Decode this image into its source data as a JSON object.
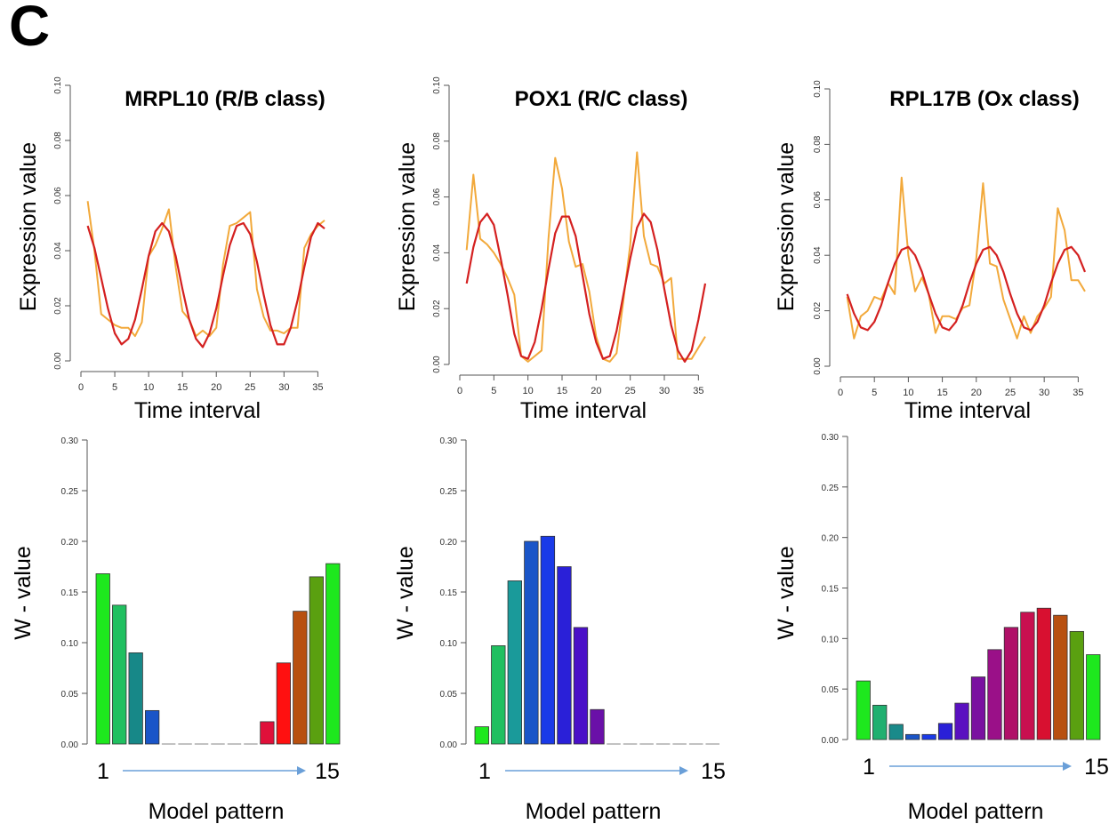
{
  "panel_label": "C",
  "colors": {
    "observed": "#f2a93b",
    "fitted": "#d42020",
    "bar_outline": "#333333",
    "arrow": "#6a9fd8"
  },
  "chart_data": [
    {
      "type": "line",
      "title": "MRPL10 (R/B class)",
      "xlabel": "Time interval",
      "ylabel": "Expression value",
      "xlim": [
        0,
        36
      ],
      "ylim": [
        0,
        0.1
      ],
      "xticks": [
        "0",
        "5",
        "10",
        "15",
        "20",
        "25",
        "30",
        "35"
      ],
      "yticks": [
        "0.00",
        "0.02",
        "0.04",
        "0.06",
        "0.08",
        "0.10"
      ],
      "series": [
        {
          "role": "observed",
          "x": [
            1,
            2,
            3,
            4,
            5,
            6,
            7,
            8,
            9,
            10,
            11,
            12,
            13,
            14,
            15,
            16,
            17,
            18,
            19,
            20,
            21,
            22,
            23,
            24,
            25,
            26,
            27,
            28,
            29,
            30,
            31,
            32,
            33,
            34,
            35,
            36
          ],
          "values": [
            0.058,
            0.04,
            0.017,
            0.015,
            0.013,
            0.012,
            0.012,
            0.009,
            0.014,
            0.038,
            0.042,
            0.048,
            0.055,
            0.034,
            0.018,
            0.015,
            0.009,
            0.011,
            0.009,
            0.012,
            0.035,
            0.049,
            0.05,
            0.052,
            0.054,
            0.026,
            0.016,
            0.011,
            0.011,
            0.01,
            0.012,
            0.012,
            0.041,
            0.046,
            0.049,
            0.051
          ]
        },
        {
          "role": "fitted",
          "x": [
            1,
            2,
            3,
            4,
            5,
            6,
            7,
            8,
            9,
            10,
            11,
            12,
            13,
            14,
            15,
            16,
            17,
            18,
            19,
            20,
            21,
            22,
            23,
            24,
            25,
            26,
            27,
            28,
            29,
            30,
            31,
            32,
            33,
            34,
            35,
            36
          ],
          "values": [
            0.049,
            0.041,
            0.03,
            0.019,
            0.01,
            0.006,
            0.008,
            0.015,
            0.026,
            0.038,
            0.047,
            0.05,
            0.047,
            0.038,
            0.026,
            0.015,
            0.008,
            0.005,
            0.01,
            0.019,
            0.031,
            0.042,
            0.049,
            0.05,
            0.046,
            0.036,
            0.024,
            0.013,
            0.006,
            0.006,
            0.012,
            0.022,
            0.034,
            0.045,
            0.05,
            0.048
          ]
        }
      ]
    },
    {
      "type": "line",
      "title": "POX1 (R/C class)",
      "xlabel": "Time interval",
      "ylabel": "Expression value",
      "xlim": [
        0,
        36
      ],
      "ylim": [
        0,
        0.1
      ],
      "xticks": [
        "0",
        "5",
        "10",
        "15",
        "20",
        "25",
        "30",
        "35"
      ],
      "yticks": [
        "0.00",
        "0.02",
        "0.04",
        "0.06",
        "0.08",
        "0.10"
      ],
      "series": [
        {
          "role": "observed",
          "x": [
            1,
            2,
            3,
            4,
            5,
            6,
            7,
            8,
            9,
            10,
            11,
            12,
            13,
            14,
            15,
            16,
            17,
            18,
            19,
            20,
            21,
            22,
            23,
            24,
            25,
            26,
            27,
            28,
            29,
            30,
            31,
            32,
            33,
            34,
            35,
            36
          ],
          "values": [
            0.041,
            0.068,
            0.045,
            0.043,
            0.04,
            0.036,
            0.031,
            0.025,
            0.003,
            0.001,
            0.003,
            0.005,
            0.045,
            0.074,
            0.063,
            0.044,
            0.035,
            0.036,
            0.026,
            0.01,
            0.002,
            0.001,
            0.004,
            0.023,
            0.043,
            0.076,
            0.046,
            0.036,
            0.035,
            0.029,
            0.031,
            0.002,
            0.002,
            0.002,
            0.006,
            0.01
          ]
        },
        {
          "role": "fitted",
          "x": [
            1,
            2,
            3,
            4,
            5,
            6,
            7,
            8,
            9,
            10,
            11,
            12,
            13,
            14,
            15,
            16,
            17,
            18,
            19,
            20,
            21,
            22,
            23,
            24,
            25,
            26,
            27,
            28,
            29,
            30,
            31,
            32,
            33,
            34,
            35,
            36
          ],
          "values": [
            0.029,
            0.042,
            0.051,
            0.054,
            0.05,
            0.038,
            0.025,
            0.011,
            0.003,
            0.002,
            0.008,
            0.02,
            0.034,
            0.047,
            0.053,
            0.053,
            0.046,
            0.032,
            0.018,
            0.008,
            0.002,
            0.003,
            0.012,
            0.025,
            0.038,
            0.049,
            0.054,
            0.051,
            0.041,
            0.027,
            0.014,
            0.005,
            0.001,
            0.005,
            0.016,
            0.029
          ]
        }
      ]
    },
    {
      "type": "line",
      "title": "RPL17B (Ox class)",
      "xlabel": "Time interval",
      "ylabel": "Expression value",
      "xlim": [
        0,
        36
      ],
      "ylim": [
        0,
        0.1
      ],
      "xticks": [
        "0",
        "5",
        "10",
        "15",
        "20",
        "25",
        "30",
        "35"
      ],
      "yticks": [
        "0.00",
        "0.02",
        "0.04",
        "0.06",
        "0.08",
        "0.10"
      ],
      "series": [
        {
          "role": "observed",
          "x": [
            1,
            2,
            3,
            4,
            5,
            6,
            7,
            8,
            9,
            10,
            11,
            12,
            13,
            14,
            15,
            16,
            17,
            18,
            19,
            20,
            21,
            22,
            23,
            24,
            25,
            26,
            27,
            28,
            29,
            30,
            31,
            32,
            33,
            34,
            35,
            36
          ],
          "values": [
            0.025,
            0.01,
            0.018,
            0.02,
            0.025,
            0.024,
            0.03,
            0.026,
            0.068,
            0.04,
            0.027,
            0.032,
            0.026,
            0.012,
            0.018,
            0.018,
            0.017,
            0.021,
            0.022,
            0.039,
            0.066,
            0.037,
            0.036,
            0.024,
            0.017,
            0.01,
            0.018,
            0.012,
            0.018,
            0.021,
            0.025,
            0.057,
            0.049,
            0.031,
            0.031,
            0.027
          ]
        },
        {
          "role": "fitted",
          "x": [
            1,
            2,
            3,
            4,
            5,
            6,
            7,
            8,
            9,
            10,
            11,
            12,
            13,
            14,
            15,
            16,
            17,
            18,
            19,
            20,
            21,
            22,
            23,
            24,
            25,
            26,
            27,
            28,
            29,
            30,
            31,
            32,
            33,
            34,
            35,
            36
          ],
          "values": [
            0.026,
            0.019,
            0.014,
            0.013,
            0.016,
            0.022,
            0.03,
            0.037,
            0.042,
            0.043,
            0.04,
            0.034,
            0.026,
            0.019,
            0.014,
            0.013,
            0.016,
            0.022,
            0.03,
            0.037,
            0.042,
            0.043,
            0.04,
            0.034,
            0.026,
            0.019,
            0.014,
            0.013,
            0.016,
            0.022,
            0.03,
            0.037,
            0.042,
            0.043,
            0.04,
            0.034
          ]
        }
      ]
    },
    {
      "type": "bar",
      "title": "",
      "xlabel": "Model pattern",
      "ylabel": "W - value",
      "xstart": "1",
      "xend": "15",
      "ylim": [
        0,
        0.3
      ],
      "yticks": [
        "0.00",
        "0.05",
        "0.10",
        "0.15",
        "0.20",
        "0.25",
        "0.30"
      ],
      "values": [
        0.168,
        0.137,
        0.09,
        0.033,
        0,
        0,
        0,
        0,
        0,
        0,
        0.022,
        0.08,
        0.131,
        0.165,
        0.178
      ],
      "bar_colors": [
        "#1ee81e",
        "#20c060",
        "#178888",
        "#1a55c8",
        "#2020e0",
        "#3a10d8",
        "#5a10c0",
        "#7a10a8",
        "#a01088",
        "#c81058",
        "#e0103a",
        "#ff1010",
        "#b85010",
        "#5aa010",
        "#1ee81e"
      ]
    },
    {
      "type": "bar",
      "title": "",
      "xlabel": "Model pattern",
      "ylabel": "W - value",
      "xstart": "1",
      "xend": "15",
      "ylim": [
        0,
        0.3
      ],
      "yticks": [
        "0.00",
        "0.05",
        "0.10",
        "0.15",
        "0.20",
        "0.25",
        "0.30"
      ],
      "values": [
        0.017,
        0.097,
        0.161,
        0.2,
        0.205,
        0.175,
        0.115,
        0.034,
        0,
        0,
        0,
        0,
        0,
        0,
        0
      ],
      "bar_colors": [
        "#1ee81e",
        "#20c060",
        "#1a9a9a",
        "#1a55c8",
        "#1a3ae8",
        "#2a20d8",
        "#4a10c8",
        "#6a10a8",
        "#8a1090",
        "#a81070",
        "#c81050",
        "#e01030",
        "#b85010",
        "#5aa010",
        "#1ee81e"
      ]
    },
    {
      "type": "bar",
      "title": "",
      "xlabel": "Model pattern",
      "ylabel": "W - value",
      "xstart": "1",
      "xend": "15",
      "ylim": [
        0,
        0.3
      ],
      "yticks": [
        "0.00",
        "0.05",
        "0.10",
        "0.15",
        "0.20",
        "0.25",
        "0.30"
      ],
      "values": [
        0.058,
        0.034,
        0.015,
        0.005,
        0.005,
        0.016,
        0.036,
        0.062,
        0.089,
        0.111,
        0.126,
        0.13,
        0.123,
        0.107,
        0.084
      ],
      "bar_colors": [
        "#1ee81e",
        "#20b070",
        "#1a8a8a",
        "#1a55c8",
        "#1a3ae8",
        "#2a20d8",
        "#5a10c0",
        "#7a10a0",
        "#9a1088",
        "#b01068",
        "#c81050",
        "#d81030",
        "#b85010",
        "#5aa010",
        "#1ee81e"
      ]
    }
  ]
}
